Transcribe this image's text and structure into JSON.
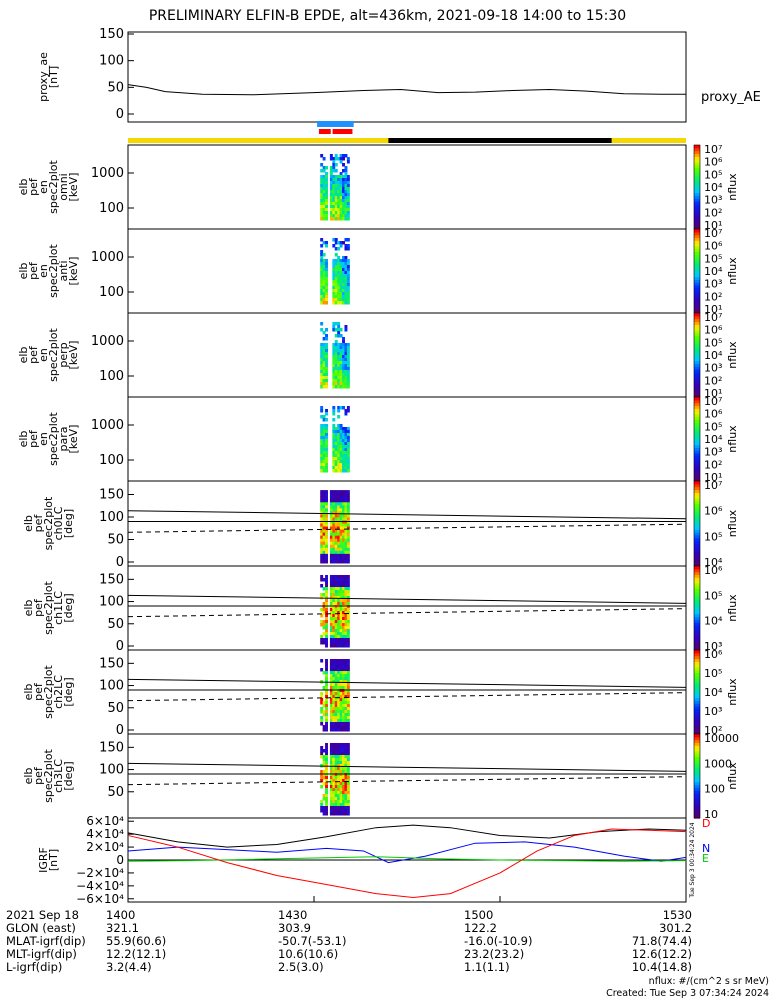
{
  "title": "PRELIMINARY ELFIN-B EPDE, alt=436km, 2021-09-18 14:00 to 15:30",
  "chart_data": [
    {
      "type": "line",
      "panel": "proxy_ae",
      "ylabel": [
        "proxy_ae",
        "[nT]"
      ],
      "ylim": [
        0,
        150
      ],
      "yticks": [
        "0",
        "50",
        "100",
        "150"
      ],
      "legend": "proxy_AE",
      "x_minutes": [
        0,
        3,
        6,
        12,
        20,
        30,
        38,
        44,
        50,
        56,
        62,
        68,
        74,
        80,
        86,
        90
      ],
      "values": [
        55,
        50,
        42,
        37,
        36,
        40,
        44,
        46,
        40,
        41,
        44,
        46,
        43,
        38,
        37,
        37
      ]
    },
    {
      "type": "heatmap",
      "panel": "omni",
      "ylabel": [
        "elb",
        "pef",
        "en",
        "spec2plot",
        "omni",
        "[keV]"
      ],
      "yscale": "log",
      "yticks": [
        "100",
        "1000"
      ],
      "time_range_minutes": [
        31,
        35.7
      ],
      "colorbar": {
        "label": "nflux",
        "ticks": [
          "10¹",
          "10²",
          "10³",
          "10⁴",
          "10⁵",
          "10⁶",
          "10⁷"
        ]
      }
    },
    {
      "type": "heatmap",
      "panel": "anti",
      "ylabel": [
        "elb",
        "pef",
        "en",
        "spec2plot",
        "anti",
        "[keV]"
      ],
      "yscale": "log",
      "yticks": [
        "100",
        "1000"
      ],
      "time_range_minutes": [
        31,
        35.7
      ],
      "colorbar": {
        "label": "nflux",
        "ticks": [
          "10¹",
          "10²",
          "10³",
          "10⁴",
          "10⁵",
          "10⁶",
          "10⁷"
        ]
      }
    },
    {
      "type": "heatmap",
      "panel": "perp",
      "ylabel": [
        "elb",
        "pef",
        "en",
        "spec2plot",
        "perp",
        "[keV]"
      ],
      "yscale": "log",
      "yticks": [
        "100",
        "1000"
      ],
      "time_range_minutes": [
        31,
        35.7
      ],
      "colorbar": {
        "label": "nflux",
        "ticks": [
          "10¹",
          "10²",
          "10³",
          "10⁴",
          "10⁵",
          "10⁶",
          "10⁷"
        ]
      }
    },
    {
      "type": "heatmap",
      "panel": "para",
      "ylabel": [
        "elb",
        "pef",
        "en",
        "spec2plot",
        "para",
        "[keV]"
      ],
      "yscale": "log",
      "yticks": [
        "100",
        "1000"
      ],
      "time_range_minutes": [
        31,
        35.7
      ],
      "colorbar": {
        "label": "nflux",
        "ticks": [
          "10¹",
          "10²",
          "10³",
          "10⁴",
          "10⁵",
          "10⁶",
          "10⁷"
        ]
      }
    },
    {
      "type": "heatmap",
      "panel": "ch0LC",
      "ylabel": [
        "elb",
        "pef",
        "spec2plot",
        "ch0LC",
        "[deg]"
      ],
      "ylim": [
        0,
        180
      ],
      "yticks": [
        "0",
        "50",
        "100",
        "150"
      ],
      "time_range_minutes": [
        31,
        35.7
      ],
      "reference_lines": {
        "solid": [
          [
            114,
            96
          ],
          [
            90,
            90
          ]
        ],
        "dashed": [
          [
            66,
            84
          ]
        ]
      },
      "colorbar": {
        "label": "nflux",
        "ticks": [
          "10⁴",
          "10⁵",
          "10⁶",
          "10⁷"
        ]
      }
    },
    {
      "type": "heatmap",
      "panel": "ch1LC",
      "ylabel": [
        "elb",
        "pef",
        "spec2plot",
        "ch1LC",
        "[deg]"
      ],
      "ylim": [
        0,
        180
      ],
      "yticks": [
        "0",
        "50",
        "100",
        "150"
      ],
      "time_range_minutes": [
        31,
        35.7
      ],
      "reference_lines": {
        "solid": [
          [
            114,
            96
          ],
          [
            90,
            90
          ]
        ],
        "dashed": [
          [
            66,
            84
          ]
        ]
      },
      "colorbar": {
        "label": "nflux",
        "ticks": [
          "10³",
          "10⁴",
          "10⁵",
          "10⁶"
        ]
      }
    },
    {
      "type": "heatmap",
      "panel": "ch2LC",
      "ylabel": [
        "elb",
        "pef",
        "spec2plot",
        "ch2LC",
        "[deg]"
      ],
      "ylim": [
        0,
        180
      ],
      "yticks": [
        "0",
        "50",
        "100",
        "150"
      ],
      "time_range_minutes": [
        31,
        35.7
      ],
      "reference_lines": {
        "solid": [
          [
            114,
            96
          ],
          [
            90,
            90
          ]
        ],
        "dashed": [
          [
            66,
            84
          ]
        ]
      },
      "colorbar": {
        "label": "nflux",
        "ticks": [
          "10²",
          "10³",
          "10⁴",
          "10⁵",
          "10⁶"
        ]
      }
    },
    {
      "type": "heatmap",
      "panel": "ch3LC",
      "ylabel": [
        "elb",
        "pef",
        "spec2plot",
        "ch3LC",
        "[deg]"
      ],
      "ylim": [
        0,
        180
      ],
      "yticks": [
        "50",
        "100",
        "150"
      ],
      "time_range_minutes": [
        31,
        35.7
      ],
      "reference_lines": {
        "solid": [
          [
            114,
            96
          ],
          [
            90,
            90
          ]
        ],
        "dashed": [
          [
            66,
            84
          ]
        ]
      },
      "colorbar": {
        "label": "nflux",
        "ticks": [
          "10",
          "100",
          "1000",
          "10000"
        ]
      }
    },
    {
      "type": "line",
      "panel": "IGRF",
      "ylabel": [
        "IGRF",
        "[nT]"
      ],
      "ylim": [
        -65000,
        65000
      ],
      "yticks": [
        "6×10⁴",
        "4×10⁴",
        "2×10⁴",
        "0",
        "−2×10⁴",
        "−4×10⁴",
        "−6×10⁴"
      ],
      "ytick_values": [
        60000,
        40000,
        20000,
        0,
        -20000,
        -40000,
        -60000
      ],
      "series": [
        {
          "name": "D",
          "color": "#000000",
          "x": [
            0,
            8,
            16,
            24,
            32,
            40,
            46,
            52,
            60,
            68,
            76,
            84,
            90
          ],
          "values": [
            42000,
            28000,
            20000,
            24000,
            36000,
            50000,
            54000,
            50000,
            38000,
            34000,
            44000,
            48000,
            46000
          ]
        },
        {
          "name": "N",
          "color": "#0000ff",
          "x": [
            0,
            8,
            16,
            24,
            32,
            38,
            42,
            48,
            56,
            64,
            72,
            80,
            86,
            90
          ],
          "values": [
            14000,
            20000,
            16000,
            12000,
            18000,
            14000,
            -4000,
            6000,
            26000,
            28000,
            20000,
            6000,
            -2000,
            4000
          ]
        },
        {
          "name": "E",
          "color": "#00cc00",
          "x": [
            0,
            10,
            20,
            30,
            40,
            50,
            60,
            70,
            80,
            90
          ],
          "values": [
            -2000,
            -1000,
            1000,
            3000,
            5000,
            2000,
            0,
            -1000,
            -2000,
            -1000
          ]
        },
        {
          "name": "",
          "color": "#ff0000",
          "x": [
            0,
            8,
            16,
            24,
            32,
            40,
            46,
            52,
            60,
            66,
            72,
            78,
            84,
            90
          ],
          "values": [
            38000,
            20000,
            -4000,
            -24000,
            -38000,
            -52000,
            -58000,
            -52000,
            -20000,
            14000,
            38000,
            48000,
            46000,
            44000
          ]
        }
      ]
    }
  ],
  "x_ticks": [
    {
      "minute": 0,
      "label": "1400"
    },
    {
      "minute": 30,
      "label": "1430"
    },
    {
      "minute": 60,
      "label": "1500"
    },
    {
      "minute": 90,
      "label": "1530"
    }
  ],
  "footer_rows": [
    {
      "label": "2021 Sep 18",
      "values": [
        "1400",
        "1430",
        "1500",
        "1530"
      ]
    },
    {
      "label": "GLON (east)",
      "values": [
        "321.1",
        "303.9",
        "122.2",
        "301.2"
      ]
    },
    {
      "label": "MLAT-igrf(dip)",
      "values": [
        "55.9(60.6)",
        "-50.7(-53.1)",
        "-16.0(-10.9)",
        "71.8(74.4)"
      ]
    },
    {
      "label": "MLT-igrf(dip)",
      "values": [
        "12.2(12.1)",
        "10.6(10.6)",
        "23.2(23.2)",
        "12.6(12.2)"
      ]
    },
    {
      "label": "L-igrf(dip)",
      "values": [
        "3.2(4.4)",
        "2.5(3.0)",
        "1.1(1.1)",
        "10.4(14.8)"
      ]
    }
  ],
  "units_note": "nflux: #/(cm^2 s sr MeV)",
  "created_note": "Created: Tue Sep  3 07:34:24 2024",
  "side_stamp": "Tue Sep  3 00:34:24 2024",
  "colors": {
    "sunlight_bar": "#f5d800",
    "shadow_bar": "#000000",
    "science_zone_blue": "#1e90ff",
    "science_zone_red": "#ff0000"
  }
}
